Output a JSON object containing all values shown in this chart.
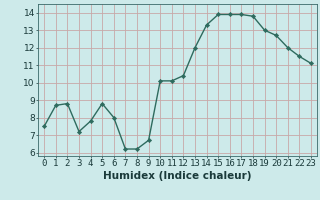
{
  "x": [
    0,
    1,
    2,
    3,
    4,
    5,
    6,
    7,
    8,
    9,
    10,
    11,
    12,
    13,
    14,
    15,
    16,
    17,
    18,
    19,
    20,
    21,
    22,
    23
  ],
  "y": [
    7.5,
    8.7,
    8.8,
    7.2,
    7.8,
    8.8,
    8.0,
    6.2,
    6.2,
    6.7,
    10.1,
    10.1,
    10.4,
    12.0,
    13.3,
    13.9,
    13.9,
    13.9,
    13.8,
    13.0,
    12.7,
    12.0,
    11.5,
    11.1
  ],
  "line_color": "#2e6b5e",
  "marker": "D",
  "marker_size": 2.2,
  "bg_color": "#cdeaea",
  "grid_color": "#c8a8a8",
  "xlabel": "Humidex (Indice chaleur)",
  "ylabel_ticks": [
    6,
    7,
    8,
    9,
    10,
    11,
    12,
    13,
    14
  ],
  "xlim": [
    -0.5,
    23.5
  ],
  "ylim": [
    5.8,
    14.5
  ],
  "xtick_labels": [
    "0",
    "1",
    "2",
    "3",
    "4",
    "5",
    "6",
    "7",
    "8",
    "9",
    "10",
    "11",
    "12",
    "13",
    "14",
    "15",
    "16",
    "17",
    "18",
    "19",
    "20",
    "21",
    "22",
    "23"
  ],
  "line_width": 1.0,
  "tick_fontsize": 6.5,
  "xlabel_fontsize": 7.5
}
